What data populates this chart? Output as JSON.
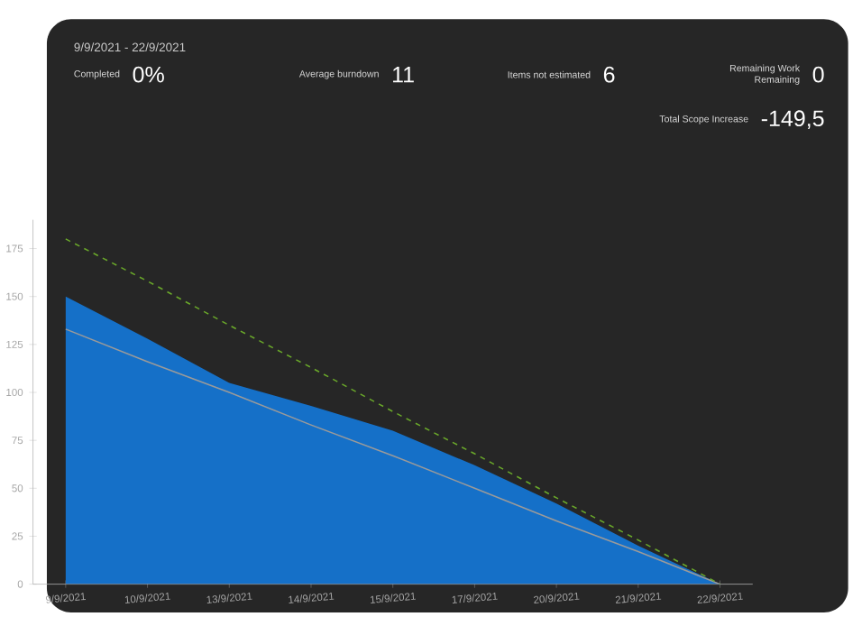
{
  "chart_data": {
    "type": "area",
    "subtitle": "9/9/2021 - 22/9/2021",
    "annotations": [
      "Completed",
      "0%",
      "Average burndown",
      "11",
      "Items not estimated",
      "6",
      "Remaining Work",
      "Remaining",
      "0",
      "Total Scope Increase",
      "-149,5"
    ],
    "categories": [
      "9/9/2021",
      "10/9/2021",
      "13/9/2021",
      "14/9/2021",
      "15/9/2021",
      "17/9/2021",
      "20/9/2021",
      "21/9/2021",
      "22/9/2021"
    ],
    "series": [
      {
        "color": "#1570c8",
        "values": [
          150,
          128,
          105,
          93,
          80,
          62,
          42,
          20,
          0
        ]
      },
      {
        "type": "line",
        "color": "#9a9a9a",
        "line_style": "solid",
        "values": [
          133,
          116,
          100,
          83,
          67,
          50,
          33,
          17,
          0
        ]
      },
      {
        "type": "line",
        "color": "#6aa82a",
        "line_style": "dashed",
        "values": [
          180,
          158,
          135,
          113,
          90,
          68,
          45,
          23,
          0
        ]
      }
    ],
    "ylim": [
      0,
      190
    ],
    "yticks": [
      0,
      25,
      50,
      75,
      100,
      125,
      150,
      175
    ],
    "grid": false
  }
}
